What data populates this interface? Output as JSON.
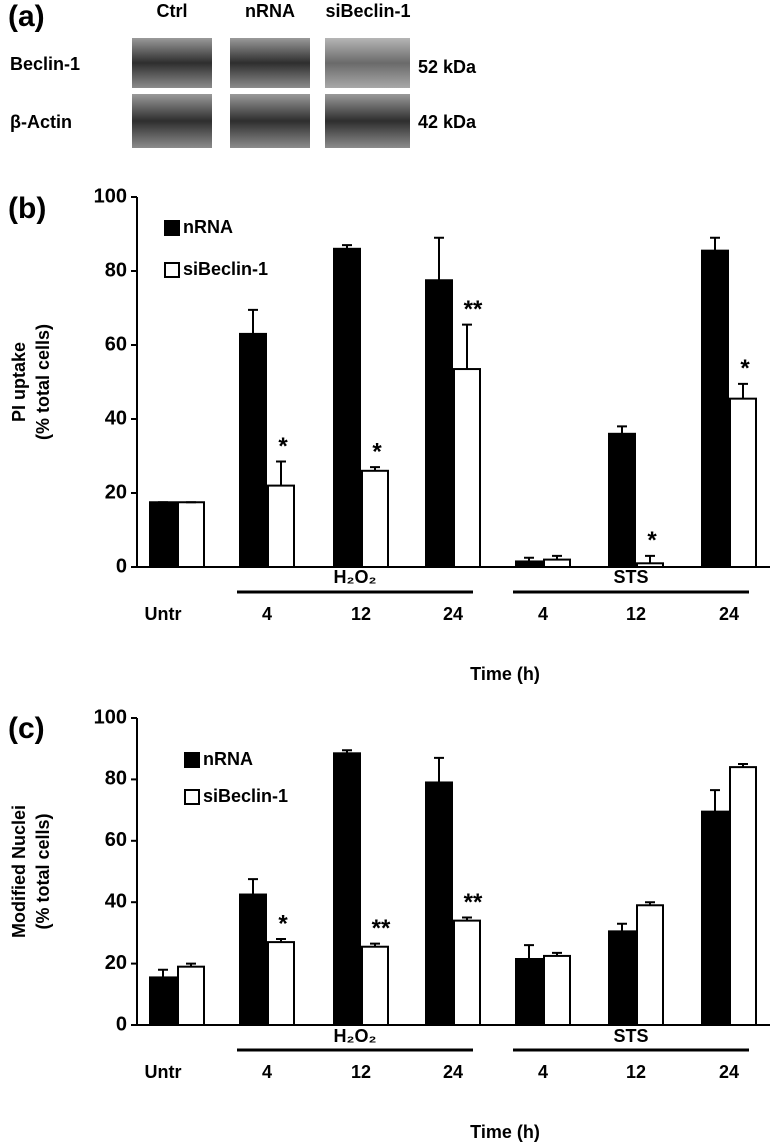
{
  "blot": {
    "panel": "(a)",
    "lanes": [
      "Ctrl",
      "nRNA",
      "siBeclin-1"
    ],
    "rows": [
      {
        "name": "Beclin-1",
        "size": "52 kDa"
      },
      {
        "name": "β-Actin",
        "size": "42 kDa"
      }
    ]
  },
  "chart_data": [
    {
      "type": "bar",
      "panel": "(b)",
      "ylabel": [
        "PI uptake",
        "(% total cells)"
      ],
      "xlabel": "Time (h)",
      "categories": [
        "Untr",
        "4",
        "12",
        "24",
        "4",
        "12",
        "24"
      ],
      "groups": [
        "H₂O₂",
        "STS"
      ],
      "ylim": [
        0,
        100
      ],
      "yticks": [
        0,
        20,
        40,
        60,
        80,
        100
      ],
      "legend": "top-left",
      "series": [
        {
          "name": "nRNA",
          "color": "#000000",
          "values": [
            17.5,
            63,
            86,
            77.5,
            1.5,
            36,
            85.5
          ],
          "errors": [
            0,
            6.5,
            1,
            11.5,
            1,
            2,
            3.5
          ]
        },
        {
          "name": "siBeclin-1",
          "color": "#ffffff",
          "values": [
            17.5,
            22,
            26,
            53.5,
            2,
            1,
            45.5
          ],
          "errors": [
            0,
            6.5,
            1,
            12,
            1,
            2,
            4
          ],
          "significance": [
            null,
            "*",
            "*",
            "**",
            null,
            "*",
            "*"
          ]
        }
      ]
    },
    {
      "type": "bar",
      "panel": "(c)",
      "ylabel": [
        "Modified Nuclei",
        "(% total cells)"
      ],
      "xlabel": "Time (h)",
      "categories": [
        "Untr",
        "4",
        "12",
        "24",
        "4",
        "12",
        "24"
      ],
      "groups": [
        "H₂O₂",
        "STS"
      ],
      "ylim": [
        0,
        100
      ],
      "yticks": [
        0,
        20,
        40,
        60,
        80,
        100
      ],
      "legend": "top-left",
      "series": [
        {
          "name": "nRNA",
          "color": "#000000",
          "values": [
            15.5,
            42.5,
            88.5,
            79,
            21.5,
            30.5,
            69.5
          ],
          "errors": [
            2.5,
            5,
            1,
            8,
            4.5,
            2.5,
            7
          ]
        },
        {
          "name": "siBeclin-1",
          "color": "#ffffff",
          "values": [
            19,
            27,
            25.5,
            34,
            22.5,
            39,
            84
          ],
          "errors": [
            1,
            1,
            1,
            1,
            1,
            1,
            1
          ],
          "significance": [
            null,
            "*",
            "**",
            "**",
            null,
            null,
            null
          ]
        }
      ]
    }
  ]
}
